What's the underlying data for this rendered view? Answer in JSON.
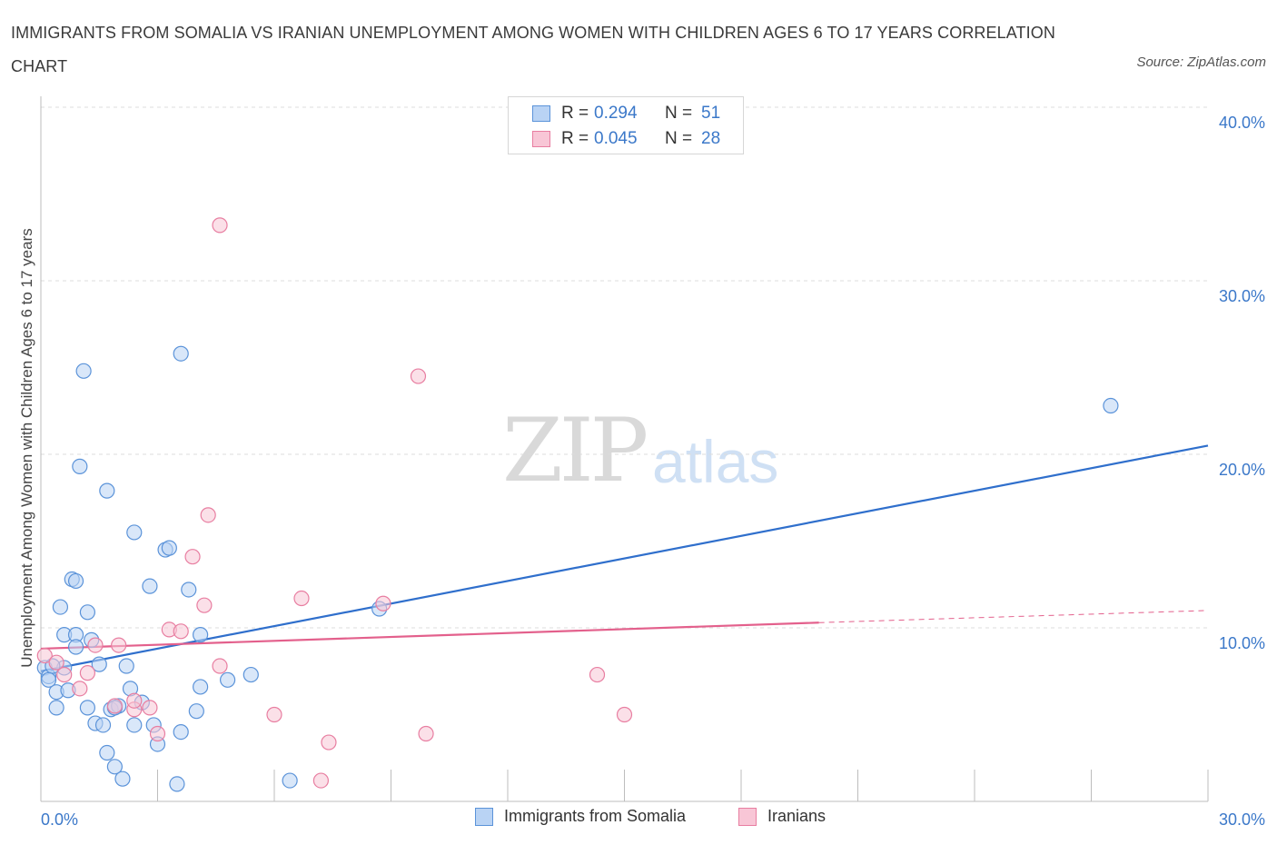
{
  "chart_data": {
    "type": "scatter",
    "title": "IMMIGRANTS FROM SOMALIA VS IRANIAN UNEMPLOYMENT AMONG WOMEN WITH CHILDREN AGES 6 TO 17 YEARS CORRELATION CHART",
    "source": "Source: ZipAtlas.com",
    "ylabel": "Unemployment Among Women with Children Ages 6 to 17 years",
    "xlabel": "",
    "xlim": [
      0,
      30
    ],
    "ylim": [
      0,
      40
    ],
    "x_tick_labels": [
      "0.0%",
      "30.0%"
    ],
    "y_ticks": [
      10,
      20,
      30,
      40
    ],
    "y_tick_labels": [
      "10.0%",
      "20.0%",
      "30.0%",
      "40.0%"
    ],
    "grid": true,
    "watermark": {
      "zip": "ZIP",
      "atlas": "atlas"
    },
    "legend_stats": [
      {
        "r_label": "R =",
        "r_value": "0.294",
        "n_label": "N =",
        "n_value": "51"
      },
      {
        "r_label": "R =",
        "r_value": "0.045",
        "n_label": "N =",
        "n_value": "28"
      }
    ],
    "series": [
      {
        "name": "Immigrants from Somalia",
        "color": "#5b93d9",
        "fill": "#b9d3f4",
        "trend": {
          "x0": 0,
          "y0": 7.5,
          "x1": 30,
          "y1": 20.5
        },
        "points": [
          [
            0.1,
            7.7
          ],
          [
            0.2,
            7.2
          ],
          [
            0.2,
            7.0
          ],
          [
            0.4,
            5.4
          ],
          [
            0.4,
            6.3
          ],
          [
            0.5,
            11.2
          ],
          [
            0.6,
            7.7
          ],
          [
            0.7,
            6.4
          ],
          [
            0.6,
            9.6
          ],
          [
            0.8,
            12.8
          ],
          [
            0.9,
            12.7
          ],
          [
            0.9,
            9.6
          ],
          [
            0.9,
            8.9
          ],
          [
            1.1,
            24.8
          ],
          [
            1.0,
            19.3
          ],
          [
            1.2,
            10.9
          ],
          [
            1.2,
            5.4
          ],
          [
            1.3,
            9.3
          ],
          [
            1.4,
            4.5
          ],
          [
            1.5,
            7.9
          ],
          [
            1.6,
            4.4
          ],
          [
            1.7,
            17.9
          ],
          [
            1.7,
            2.8
          ],
          [
            1.8,
            5.3
          ],
          [
            1.9,
            2.0
          ],
          [
            2.0,
            5.5
          ],
          [
            2.1,
            1.3
          ],
          [
            2.2,
            7.8
          ],
          [
            2.3,
            6.5
          ],
          [
            2.4,
            4.4
          ],
          [
            2.4,
            15.5
          ],
          [
            2.6,
            5.7
          ],
          [
            2.8,
            12.4
          ],
          [
            2.9,
            4.4
          ],
          [
            3.0,
            3.3
          ],
          [
            3.2,
            14.5
          ],
          [
            3.3,
            14.6
          ],
          [
            3.5,
            1.0
          ],
          [
            3.6,
            4.0
          ],
          [
            3.6,
            25.8
          ],
          [
            3.8,
            12.2
          ],
          [
            4.1,
            9.6
          ],
          [
            4.1,
            6.6
          ],
          [
            4.0,
            5.2
          ],
          [
            4.8,
            7.0
          ],
          [
            5.4,
            7.3
          ],
          [
            6.4,
            1.2
          ],
          [
            8.7,
            11.1
          ],
          [
            27.5,
            22.8
          ],
          [
            0.3,
            7.8
          ],
          [
            1.9,
            5.4
          ]
        ]
      },
      {
        "name": "Iranians",
        "color": "#e87ea1",
        "fill": "#f8c6d6",
        "trend": {
          "x0": 0,
          "y0": 8.8,
          "x1": 20,
          "y1": 10.3,
          "dash_x1": 30,
          "dash_y1": 11.0
        },
        "points": [
          [
            0.1,
            8.4
          ],
          [
            0.4,
            8.0
          ],
          [
            0.6,
            7.3
          ],
          [
            1.0,
            6.5
          ],
          [
            1.2,
            7.4
          ],
          [
            1.4,
            9.0
          ],
          [
            1.9,
            5.5
          ],
          [
            2.0,
            9.0
          ],
          [
            2.4,
            5.3
          ],
          [
            2.8,
            5.4
          ],
          [
            3.0,
            3.9
          ],
          [
            3.3,
            9.9
          ],
          [
            3.6,
            9.8
          ],
          [
            3.9,
            14.1
          ],
          [
            4.2,
            11.3
          ],
          [
            4.3,
            16.5
          ],
          [
            4.6,
            7.8
          ],
          [
            4.6,
            33.2
          ],
          [
            6.0,
            5.0
          ],
          [
            6.7,
            11.7
          ],
          [
            7.2,
            1.2
          ],
          [
            7.4,
            3.4
          ],
          [
            8.8,
            11.4
          ],
          [
            9.7,
            24.5
          ],
          [
            9.9,
            3.9
          ],
          [
            14.3,
            7.3
          ],
          [
            15.0,
            5.0
          ],
          [
            2.4,
            5.8
          ]
        ]
      }
    ]
  },
  "texts": {
    "title": "IMMIGRANTS FROM SOMALIA VS IRANIAN UNEMPLOYMENT AMONG WOMEN WITH CHILDREN AGES 6 TO 17 YEARS CORRELATION CHART",
    "source": "Source: ZipAtlas.com",
    "ylabel": "Unemployment Among Women with Children Ages 6 to 17 years",
    "legend_somalia": "Immigrants from Somalia",
    "legend_iranians": "Iranians"
  }
}
